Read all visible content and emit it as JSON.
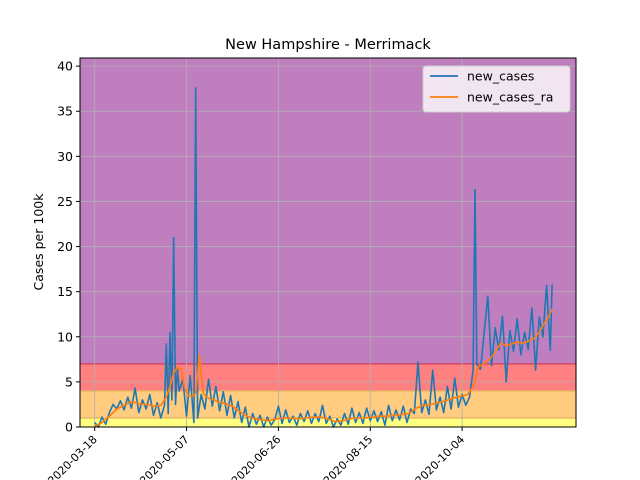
{
  "chart_data": {
    "type": "line",
    "title": "New Hampshire - Merrimack",
    "xlabel": "",
    "ylabel": "Cases per 100k",
    "ylim": [
      0,
      40.9
    ],
    "xlim": [
      "2020-03-10",
      "2020-12-05"
    ],
    "yticks": [
      0,
      5,
      10,
      15,
      20,
      25,
      30,
      35,
      40
    ],
    "xticks": [
      "2020-03-18",
      "2020-05-07",
      "2020-06-26",
      "2020-08-15",
      "2020-10-04"
    ],
    "grid": true,
    "legend_position": "top-right",
    "bands": [
      {
        "from": 0,
        "to": 1,
        "color": "#ffff80"
      },
      {
        "from": 1,
        "to": 4,
        "color": "#ffcc80"
      },
      {
        "from": 4,
        "to": 7,
        "color": "#ff8080"
      },
      {
        "from": 7,
        "to": 40.9,
        "color": "#bf7fbf"
      }
    ],
    "series": [
      {
        "name": "new_cases",
        "color": "#1f77b4",
        "points": [
          [
            "2020-03-18",
            0.5
          ],
          [
            "2020-03-20",
            0.0
          ],
          [
            "2020-03-22",
            1.1
          ],
          [
            "2020-03-24",
            0.3
          ],
          [
            "2020-03-26",
            1.6
          ],
          [
            "2020-03-28",
            2.5
          ],
          [
            "2020-03-30",
            2.0
          ],
          [
            "2020-04-01",
            2.9
          ],
          [
            "2020-04-03",
            1.9
          ],
          [
            "2020-04-05",
            3.3
          ],
          [
            "2020-04-07",
            2.1
          ],
          [
            "2020-04-09",
            4.3
          ],
          [
            "2020-04-11",
            1.6
          ],
          [
            "2020-04-13",
            3.0
          ],
          [
            "2020-04-15",
            2.0
          ],
          [
            "2020-04-17",
            3.6
          ],
          [
            "2020-04-19",
            1.3
          ],
          [
            "2020-04-21",
            2.7
          ],
          [
            "2020-04-23",
            1.0
          ],
          [
            "2020-04-25",
            2.4
          ],
          [
            "2020-04-26",
            9.2
          ],
          [
            "2020-04-27",
            1.5
          ],
          [
            "2020-04-28",
            10.5
          ],
          [
            "2020-04-29",
            3.0
          ],
          [
            "2020-04-30",
            21.0
          ],
          [
            "2020-05-01",
            2.5
          ],
          [
            "2020-05-02",
            6.5
          ],
          [
            "2020-05-03",
            4.0
          ],
          [
            "2020-05-05",
            5.3
          ],
          [
            "2020-05-07",
            1.2
          ],
          [
            "2020-05-09",
            5.7
          ],
          [
            "2020-05-11",
            0.5
          ],
          [
            "2020-05-12",
            37.6
          ],
          [
            "2020-05-13",
            1.0
          ],
          [
            "2020-05-15",
            3.6
          ],
          [
            "2020-05-17",
            2.0
          ],
          [
            "2020-05-19",
            5.3
          ],
          [
            "2020-05-21",
            2.3
          ],
          [
            "2020-05-23",
            4.5
          ],
          [
            "2020-05-25",
            1.8
          ],
          [
            "2020-05-27",
            3.9
          ],
          [
            "2020-05-29",
            1.3
          ],
          [
            "2020-05-31",
            3.5
          ],
          [
            "2020-06-02",
            1.0
          ],
          [
            "2020-06-04",
            2.8
          ],
          [
            "2020-06-06",
            0.5
          ],
          [
            "2020-06-08",
            2.2
          ],
          [
            "2020-06-10",
            0.0
          ],
          [
            "2020-06-12",
            1.5
          ],
          [
            "2020-06-14",
            0.3
          ],
          [
            "2020-06-16",
            1.3
          ],
          [
            "2020-06-18",
            0.0
          ],
          [
            "2020-06-20",
            1.1
          ],
          [
            "2020-06-22",
            0.2
          ],
          [
            "2020-06-24",
            0.8
          ],
          [
            "2020-06-26",
            2.3
          ],
          [
            "2020-06-28",
            0.4
          ],
          [
            "2020-06-30",
            1.9
          ],
          [
            "2020-07-02",
            0.5
          ],
          [
            "2020-07-04",
            1.2
          ],
          [
            "2020-07-06",
            0.2
          ],
          [
            "2020-07-08",
            1.5
          ],
          [
            "2020-07-10",
            0.6
          ],
          [
            "2020-07-12",
            1.8
          ],
          [
            "2020-07-14",
            0.4
          ],
          [
            "2020-07-16",
            1.5
          ],
          [
            "2020-07-18",
            0.6
          ],
          [
            "2020-07-20",
            2.4
          ],
          [
            "2020-07-22",
            0.4
          ],
          [
            "2020-07-24",
            1.2
          ],
          [
            "2020-07-26",
            0.0
          ],
          [
            "2020-07-28",
            0.9
          ],
          [
            "2020-07-30",
            0.2
          ],
          [
            "2020-08-01",
            1.5
          ],
          [
            "2020-08-03",
            0.3
          ],
          [
            "2020-08-05",
            2.1
          ],
          [
            "2020-08-07",
            0.5
          ],
          [
            "2020-08-09",
            1.6
          ],
          [
            "2020-08-11",
            0.4
          ],
          [
            "2020-08-13",
            2.1
          ],
          [
            "2020-08-15",
            0.7
          ],
          [
            "2020-08-17",
            1.8
          ],
          [
            "2020-08-19",
            0.6
          ],
          [
            "2020-08-21",
            1.7
          ],
          [
            "2020-08-23",
            0.2
          ],
          [
            "2020-08-25",
            2.4
          ],
          [
            "2020-08-27",
            0.7
          ],
          [
            "2020-08-29",
            1.9
          ],
          [
            "2020-08-31",
            0.8
          ],
          [
            "2020-09-02",
            2.3
          ],
          [
            "2020-09-04",
            0.5
          ],
          [
            "2020-09-06",
            2.0
          ],
          [
            "2020-09-08",
            1.5
          ],
          [
            "2020-09-10",
            7.2
          ],
          [
            "2020-09-12",
            1.6
          ],
          [
            "2020-09-14",
            3.0
          ],
          [
            "2020-09-16",
            1.4
          ],
          [
            "2020-09-18",
            6.3
          ],
          [
            "2020-09-20",
            1.9
          ],
          [
            "2020-09-22",
            3.3
          ],
          [
            "2020-09-24",
            1.6
          ],
          [
            "2020-09-26",
            4.5
          ],
          [
            "2020-09-28",
            2.0
          ],
          [
            "2020-09-30",
            5.4
          ],
          [
            "2020-10-02",
            2.2
          ],
          [
            "2020-10-04",
            3.6
          ],
          [
            "2020-10-06",
            2.4
          ],
          [
            "2020-10-08",
            3.3
          ],
          [
            "2020-10-10",
            6.3
          ],
          [
            "2020-10-11",
            26.3
          ],
          [
            "2020-10-12",
            7.0
          ],
          [
            "2020-10-14",
            6.4
          ],
          [
            "2020-10-16",
            10.4
          ],
          [
            "2020-10-18",
            14.5
          ],
          [
            "2020-10-20",
            6.8
          ],
          [
            "2020-10-22",
            11.0
          ],
          [
            "2020-10-24",
            8.5
          ],
          [
            "2020-10-26",
            12.3
          ],
          [
            "2020-10-28",
            5.0
          ],
          [
            "2020-10-30",
            10.7
          ],
          [
            "2020-11-01",
            8.4
          ],
          [
            "2020-11-03",
            12.0
          ],
          [
            "2020-11-05",
            8.0
          ],
          [
            "2020-11-07",
            10.5
          ],
          [
            "2020-11-09",
            8.6
          ],
          [
            "2020-11-11",
            13.2
          ],
          [
            "2020-11-13",
            6.3
          ],
          [
            "2020-11-15",
            12.2
          ],
          [
            "2020-11-17",
            10.0
          ],
          [
            "2020-11-19",
            15.7
          ],
          [
            "2020-11-21",
            8.5
          ],
          [
            "2020-11-22",
            15.8
          ]
        ]
      },
      {
        "name": "new_cases_ra",
        "color": "#ff7f0e",
        "points": [
          [
            "2020-03-18",
            0.1
          ],
          [
            "2020-03-22",
            0.5
          ],
          [
            "2020-03-26",
            1.2
          ],
          [
            "2020-03-30",
            2.0
          ],
          [
            "2020-04-03",
            2.4
          ],
          [
            "2020-04-07",
            2.8
          ],
          [
            "2020-04-11",
            2.6
          ],
          [
            "2020-04-15",
            2.5
          ],
          [
            "2020-04-19",
            2.3
          ],
          [
            "2020-04-23",
            2.4
          ],
          [
            "2020-04-26",
            3.3
          ],
          [
            "2020-04-28",
            4.5
          ],
          [
            "2020-04-30",
            6.0
          ],
          [
            "2020-05-02",
            6.6
          ],
          [
            "2020-05-04",
            6.4
          ],
          [
            "2020-05-06",
            4.3
          ],
          [
            "2020-05-08",
            3.5
          ],
          [
            "2020-05-10",
            3.4
          ],
          [
            "2020-05-12",
            3.7
          ],
          [
            "2020-05-14",
            8.0
          ],
          [
            "2020-05-16",
            3.8
          ],
          [
            "2020-05-18",
            3.3
          ],
          [
            "2020-05-20",
            3.1
          ],
          [
            "2020-05-22",
            3.0
          ],
          [
            "2020-05-24",
            2.8
          ],
          [
            "2020-05-28",
            2.6
          ],
          [
            "2020-06-01",
            2.3
          ],
          [
            "2020-06-05",
            1.7
          ],
          [
            "2020-06-09",
            1.2
          ],
          [
            "2020-06-13",
            0.9
          ],
          [
            "2020-06-17",
            0.8
          ],
          [
            "2020-06-21",
            0.7
          ],
          [
            "2020-06-25",
            0.9
          ],
          [
            "2020-06-29",
            1.0
          ],
          [
            "2020-07-03",
            1.0
          ],
          [
            "2020-07-07",
            0.9
          ],
          [
            "2020-07-11",
            1.0
          ],
          [
            "2020-07-15",
            1.1
          ],
          [
            "2020-07-19",
            1.1
          ],
          [
            "2020-07-23",
            0.9
          ],
          [
            "2020-07-27",
            0.6
          ],
          [
            "2020-07-31",
            0.7
          ],
          [
            "2020-08-04",
            0.9
          ],
          [
            "2020-08-08",
            1.0
          ],
          [
            "2020-08-12",
            1.0
          ],
          [
            "2020-08-16",
            1.1
          ],
          [
            "2020-08-20",
            1.2
          ],
          [
            "2020-08-24",
            1.2
          ],
          [
            "2020-08-28",
            1.3
          ],
          [
            "2020-09-01",
            1.4
          ],
          [
            "2020-09-05",
            1.5
          ],
          [
            "2020-09-09",
            2.1
          ],
          [
            "2020-09-13",
            2.4
          ],
          [
            "2020-09-17",
            2.5
          ],
          [
            "2020-09-21",
            2.7
          ],
          [
            "2020-09-25",
            2.9
          ],
          [
            "2020-09-29",
            3.2
          ],
          [
            "2020-10-03",
            3.4
          ],
          [
            "2020-10-07",
            3.6
          ],
          [
            "2020-10-10",
            4.5
          ],
          [
            "2020-10-13",
            6.7
          ],
          [
            "2020-10-16",
            7.0
          ],
          [
            "2020-10-19",
            7.5
          ],
          [
            "2020-10-22",
            8.3
          ],
          [
            "2020-10-25",
            9.3
          ],
          [
            "2020-10-28",
            9.0
          ],
          [
            "2020-10-31",
            9.2
          ],
          [
            "2020-11-03",
            9.4
          ],
          [
            "2020-11-06",
            9.3
          ],
          [
            "2020-11-09",
            9.5
          ],
          [
            "2020-11-12",
            9.8
          ],
          [
            "2020-11-15",
            10.5
          ],
          [
            "2020-11-18",
            11.6
          ],
          [
            "2020-11-20",
            12.2
          ],
          [
            "2020-11-22",
            13.1
          ]
        ]
      }
    ]
  }
}
